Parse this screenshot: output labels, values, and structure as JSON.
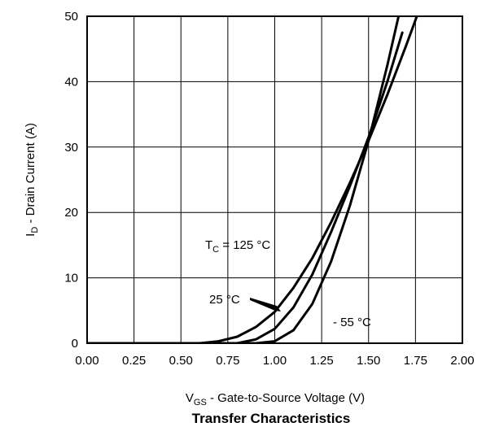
{
  "chart_data": {
    "type": "line",
    "title": "Transfer Characteristics",
    "xlabel": {
      "main": "V",
      "sub": "GS",
      "rest": " - Gate-to-Source Voltage (V)"
    },
    "ylabel": {
      "main": "I",
      "sub": "D",
      "rest": " - Drain Current (A)"
    },
    "xlim": [
      0,
      2.0
    ],
    "ylim": [
      0,
      50
    ],
    "xticks": [
      0,
      0.25,
      0.5,
      0.75,
      1.0,
      1.25,
      1.5,
      1.75,
      2.0
    ],
    "xtick_labels": [
      "0.00",
      "0.25",
      "0.50",
      "0.75",
      "1.00",
      "1.25",
      "1.50",
      "1.75",
      "2.00"
    ],
    "yticks": [
      0,
      10,
      20,
      30,
      40,
      50
    ],
    "ytick_labels": [
      "0",
      "10",
      "20",
      "30",
      "40",
      "50"
    ],
    "grid": true,
    "series": [
      {
        "name": "TC = 125 °C",
        "x": [
          0,
          0.6,
          0.7,
          0.8,
          0.9,
          1.0,
          1.1,
          1.2,
          1.3,
          1.4,
          1.5,
          1.6,
          1.7,
          1.77
        ],
        "y": [
          0,
          0,
          0.3,
          1.0,
          2.5,
          4.8,
          8.5,
          13,
          18.5,
          24.5,
          31,
          38,
          45.5,
          51
        ]
      },
      {
        "name": "25 °C",
        "x": [
          0,
          0.8,
          0.9,
          1.0,
          1.1,
          1.2,
          1.3,
          1.4,
          1.5,
          1.6,
          1.68
        ],
        "y": [
          0,
          0,
          0.6,
          2.2,
          5.5,
          10.5,
          17,
          24,
          31.5,
          40,
          47.5
        ]
      },
      {
        "name": "- 55 °C",
        "x": [
          0,
          0.9,
          1.0,
          1.1,
          1.2,
          1.3,
          1.4,
          1.5,
          1.6,
          1.66
        ],
        "y": [
          0,
          0,
          0.3,
          2.0,
          6,
          12.5,
          21,
          31,
          42.5,
          50
        ]
      }
    ],
    "annotations": [
      {
        "id": "tc125",
        "prefix": "T",
        "sub": "C",
        "rest": " = 125 °C"
      },
      {
        "id": "t25",
        "text": "25 °C"
      },
      {
        "id": "tm55",
        "text": "- 55 °C"
      }
    ]
  }
}
